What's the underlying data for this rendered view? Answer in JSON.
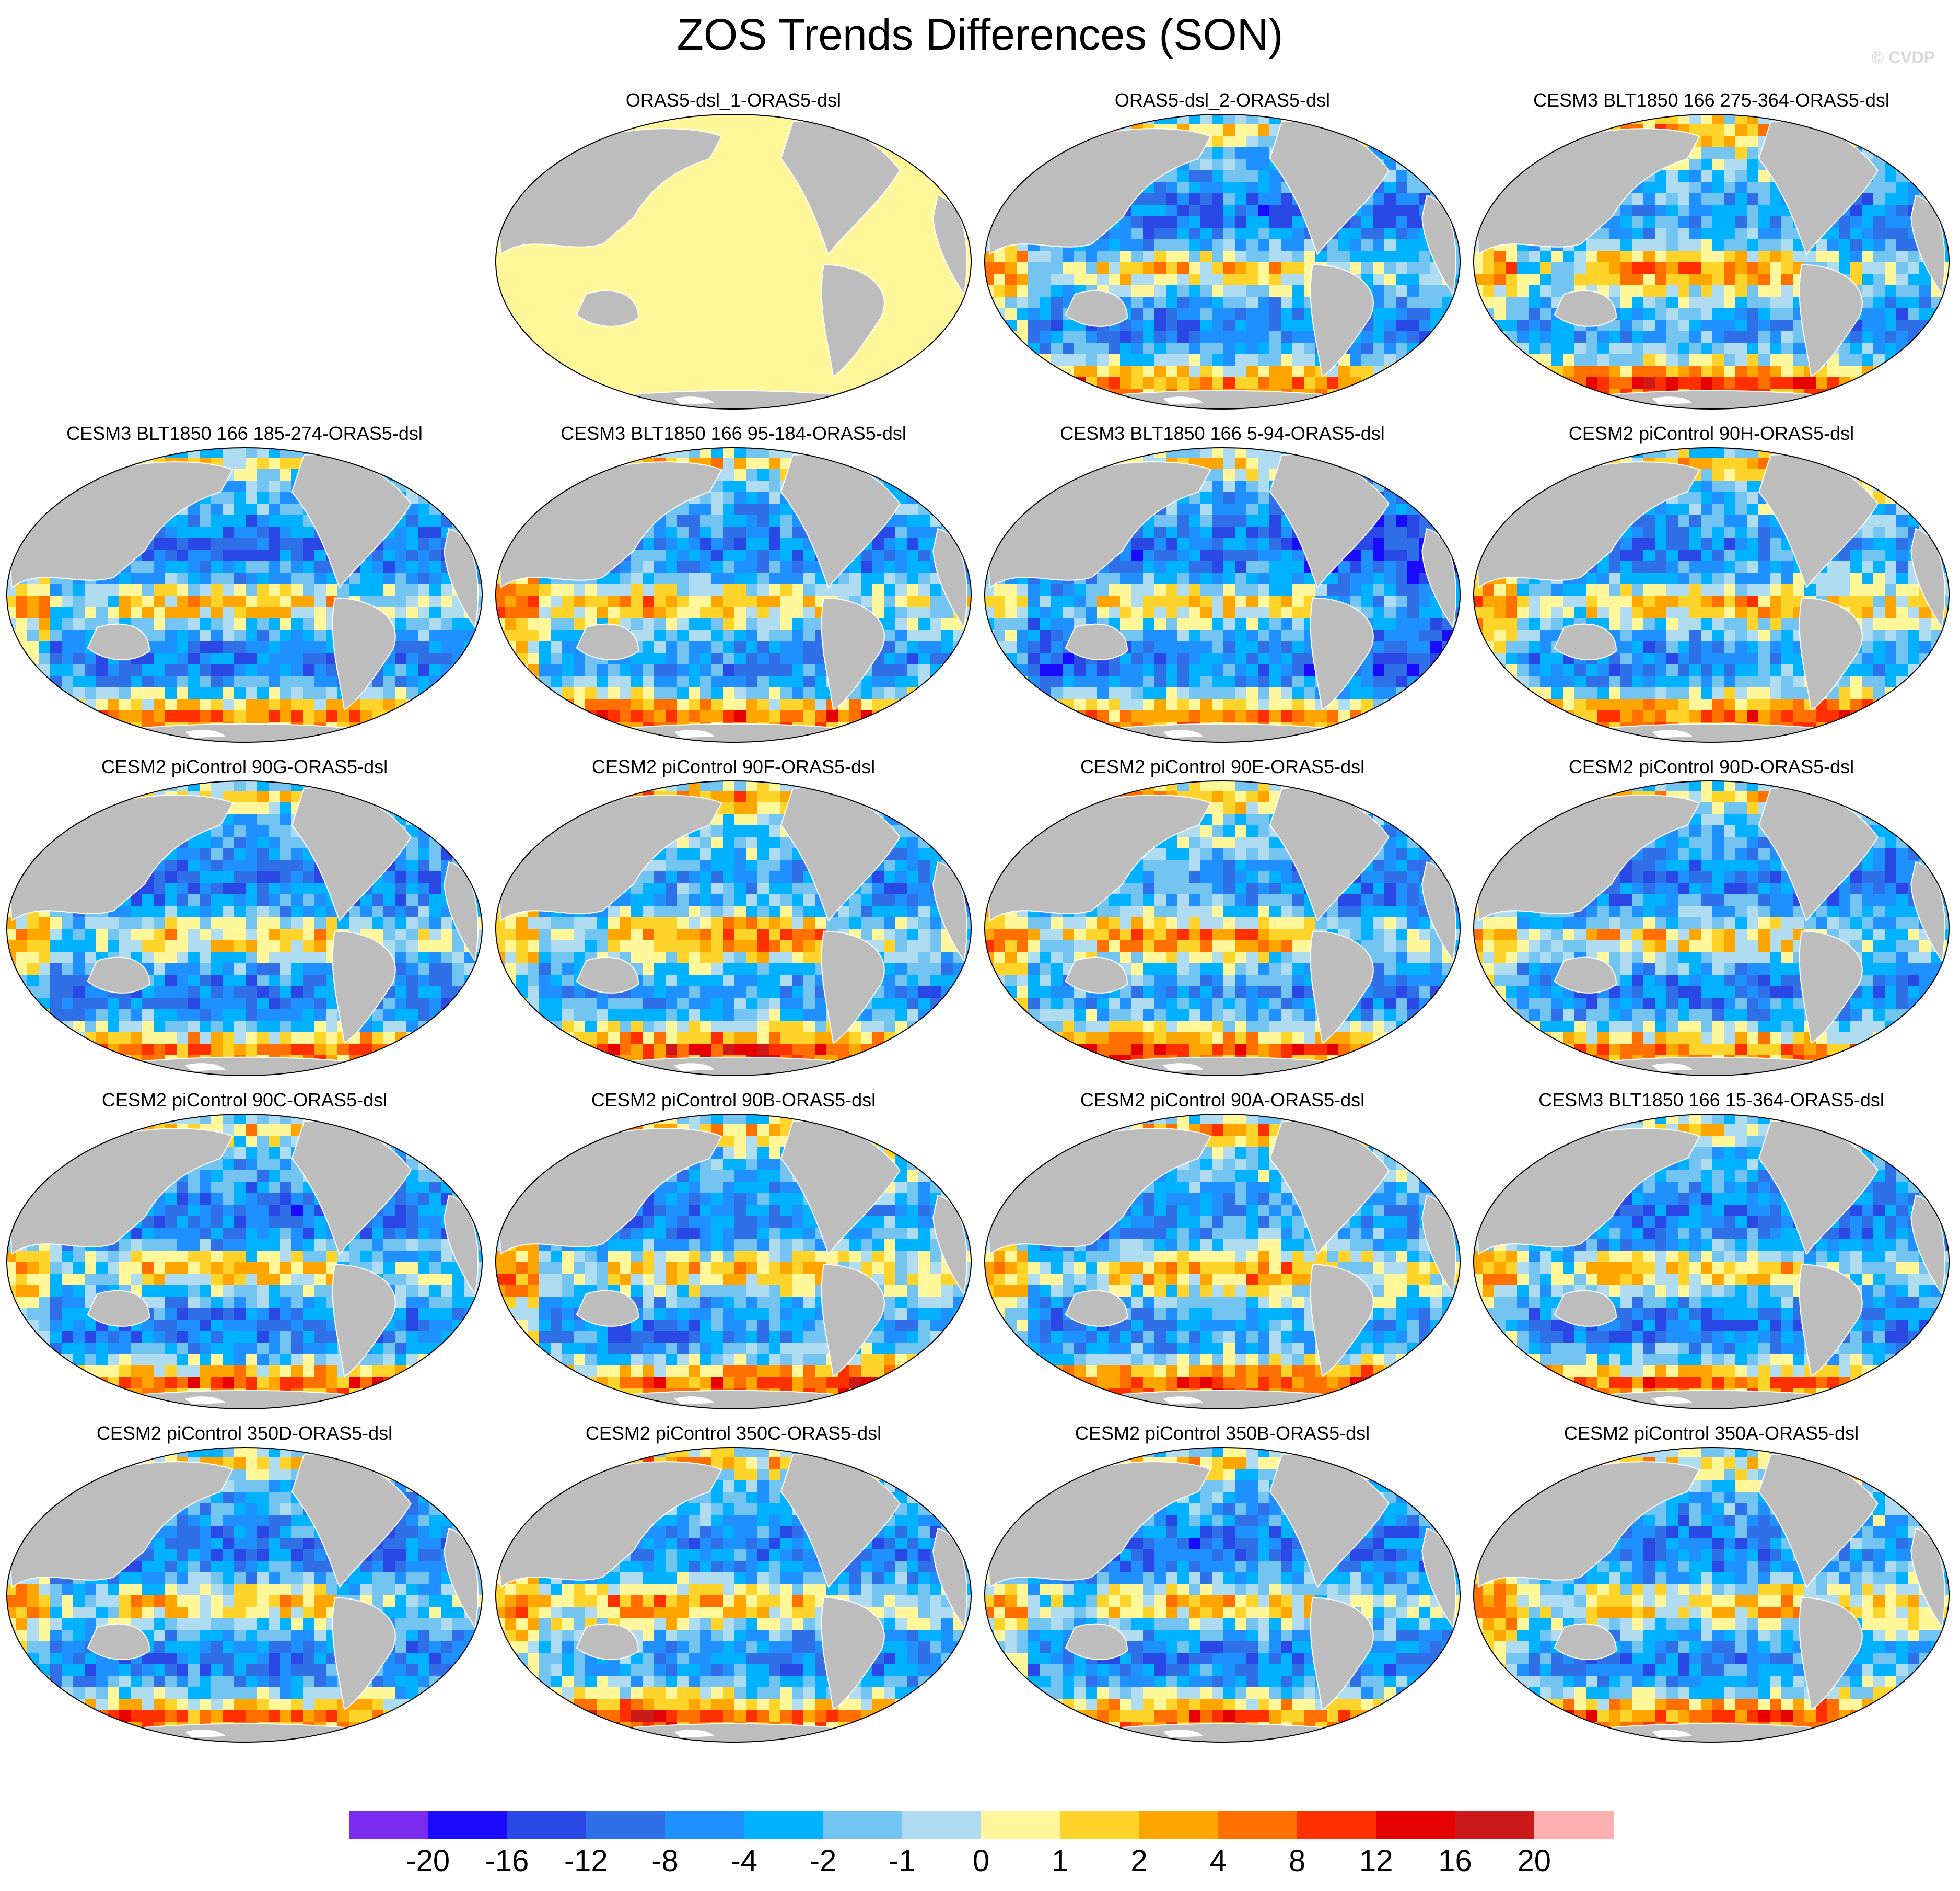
{
  "figure": {
    "title": "ZOS Trends Differences (SON)",
    "credit": "© CVDP"
  },
  "colors": {
    "land": "#bdbdbd",
    "coast": "#ffffff",
    "border": "#000000",
    "missing": "#ffffff"
  },
  "panels": [
    {
      "title": "ORAS5-dsl_1-ORAS5-dsl",
      "style": "zero"
    },
    {
      "title": "ORAS5-dsl_2-ORAS5-dsl",
      "style": "mixed"
    },
    {
      "title": "CESM3 BLT1850 166 275-364-ORAS5-dsl",
      "style": "warm"
    },
    {
      "title": "CESM3 BLT1850 166 185-274-ORAS5-dsl",
      "style": "mixed"
    },
    {
      "title": "CESM3 BLT1850 166 95-184-ORAS5-dsl",
      "style": "warm"
    },
    {
      "title": "CESM3 BLT1850 166 5-94-ORAS5-dsl",
      "style": "cool"
    },
    {
      "title": "CESM2 piControl 90H-ORAS5-dsl",
      "style": "warm"
    },
    {
      "title": "CESM2 piControl 90G-ORAS5-dsl",
      "style": "mixed"
    },
    {
      "title": "CESM2 piControl 90F-ORAS5-dsl",
      "style": "warm"
    },
    {
      "title": "CESM2 piControl 90E-ORAS5-dsl",
      "style": "warm"
    },
    {
      "title": "CESM2 piControl 90D-ORAS5-dsl",
      "style": "mixed"
    },
    {
      "title": "CESM2 piControl 90C-ORAS5-dsl",
      "style": "mixed"
    },
    {
      "title": "CESM2 piControl 90B-ORAS5-dsl",
      "style": "warm"
    },
    {
      "title": "CESM2 piControl 90A-ORAS5-dsl",
      "style": "warm"
    },
    {
      "title": "CESM3 BLT1850 166 15-364-ORAS5-dsl",
      "style": "mixed"
    },
    {
      "title": "CESM2 piControl 350D-ORAS5-dsl",
      "style": "mixed"
    },
    {
      "title": "CESM2 piControl 350C-ORAS5-dsl",
      "style": "warm"
    },
    {
      "title": "CESM2 piControl 350B-ORAS5-dsl",
      "style": "mixed"
    },
    {
      "title": "CESM2 piControl 350A-ORAS5-dsl",
      "style": "warm"
    }
  ],
  "colorbar": {
    "colors": [
      "#7a2bf0",
      "#1a0bff",
      "#2a48e6",
      "#2f6fe8",
      "#1e90ff",
      "#00b2ff",
      "#73c4f0",
      "#b0dcf2",
      "#fff79a",
      "#ffd42a",
      "#ffa500",
      "#ff7000",
      "#ff3000",
      "#e60000",
      "#cc1a1a",
      "#ffb0b0"
    ],
    "labels": [
      "-20",
      "-16",
      "-12",
      "-8",
      "-4",
      "-2",
      "-1",
      "0",
      "1",
      "2",
      "4",
      "8",
      "12",
      "16",
      "20"
    ]
  }
}
